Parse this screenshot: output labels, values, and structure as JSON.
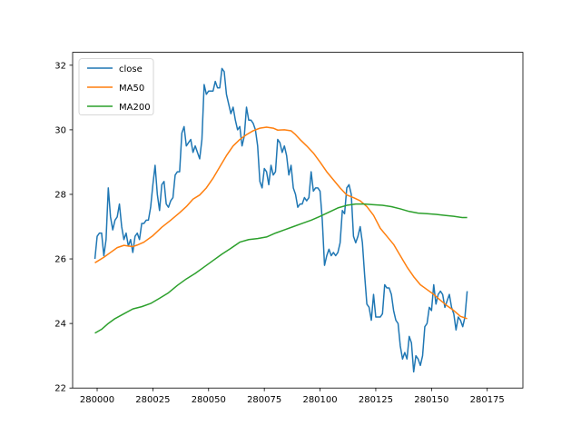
{
  "chart_data": {
    "type": "line",
    "title": "",
    "xlabel": "",
    "ylabel": "",
    "xlim": [
      279989,
      280191
    ],
    "ylim": [
      22,
      32.4
    ],
    "x_ticks": [
      280000,
      280025,
      280050,
      280075,
      280100,
      280125,
      280150,
      280175
    ],
    "x_tick_labels": [
      "280000",
      "280025",
      "280050",
      "280075",
      "280100",
      "280125",
      "280150",
      "280175"
    ],
    "y_ticks": [
      22,
      24,
      26,
      28,
      30,
      32
    ],
    "y_tick_labels": [
      "22",
      "24",
      "26",
      "28",
      "30",
      "32"
    ],
    "grid": false,
    "legend": {
      "position": "top-left",
      "entries": [
        "close",
        "MA50",
        "MA200"
      ]
    },
    "series": [
      {
        "name": "close",
        "color": "#1f77b4",
        "points": [
          [
            279999,
            26.0
          ],
          [
            280000,
            26.7
          ],
          [
            280001,
            26.8
          ],
          [
            280002,
            26.8
          ],
          [
            280003,
            26.1
          ],
          [
            280004,
            26.6
          ],
          [
            280005,
            28.2
          ],
          [
            280006,
            27.3
          ],
          [
            280007,
            26.9
          ],
          [
            280008,
            27.2
          ],
          [
            280009,
            27.3
          ],
          [
            280010,
            27.7
          ],
          [
            280011,
            27.0
          ],
          [
            280012,
            26.6
          ],
          [
            280013,
            26.8
          ],
          [
            280014,
            26.4
          ],
          [
            280015,
            26.6
          ],
          [
            280016,
            26.2
          ],
          [
            280017,
            26.7
          ],
          [
            280018,
            26.8
          ],
          [
            280019,
            26.6
          ],
          [
            280020,
            27.1
          ],
          [
            280021,
            27.1
          ],
          [
            280022,
            27.2
          ],
          [
            280023,
            27.2
          ],
          [
            280024,
            27.6
          ],
          [
            280025,
            28.3
          ],
          [
            280026,
            28.9
          ],
          [
            280027,
            28.0
          ],
          [
            280028,
            27.5
          ],
          [
            280029,
            28.3
          ],
          [
            280030,
            28.4
          ],
          [
            280031,
            27.7
          ],
          [
            280032,
            27.6
          ],
          [
            280033,
            27.8
          ],
          [
            280034,
            27.9
          ],
          [
            280035,
            28.6
          ],
          [
            280036,
            28.7
          ],
          [
            280037,
            28.7
          ],
          [
            280038,
            29.9
          ],
          [
            280039,
            30.1
          ],
          [
            280040,
            29.5
          ],
          [
            280041,
            29.6
          ],
          [
            280042,
            29.7
          ],
          [
            280043,
            29.3
          ],
          [
            280044,
            29.5
          ],
          [
            280045,
            29.3
          ],
          [
            280046,
            29.1
          ],
          [
            280047,
            29.7
          ],
          [
            280048,
            31.4
          ],
          [
            280049,
            31.1
          ],
          [
            280050,
            31.2
          ],
          [
            280051,
            31.2
          ],
          [
            280052,
            31.2
          ],
          [
            280053,
            31.5
          ],
          [
            280054,
            31.3
          ],
          [
            280055,
            31.3
          ],
          [
            280056,
            31.9
          ],
          [
            280057,
            31.8
          ],
          [
            280058,
            31.1
          ],
          [
            280059,
            30.8
          ],
          [
            280060,
            30.5
          ],
          [
            280061,
            30.7
          ],
          [
            280062,
            30.3
          ],
          [
            280063,
            30.0
          ],
          [
            280064,
            30.1
          ],
          [
            280065,
            29.5
          ],
          [
            280066,
            29.8
          ],
          [
            280067,
            30.7
          ],
          [
            280068,
            30.3
          ],
          [
            280069,
            30.3
          ],
          [
            280070,
            30.2
          ],
          [
            280071,
            30.0
          ],
          [
            280072,
            29.5
          ],
          [
            280073,
            28.4
          ],
          [
            280074,
            28.2
          ],
          [
            280075,
            28.8
          ],
          [
            280076,
            28.7
          ],
          [
            280077,
            28.3
          ],
          [
            280078,
            28.9
          ],
          [
            280079,
            28.6
          ],
          [
            280080,
            28.7
          ],
          [
            280081,
            29.7
          ],
          [
            280082,
            29.6
          ],
          [
            280083,
            29.3
          ],
          [
            280084,
            29.5
          ],
          [
            280085,
            29.2
          ],
          [
            280086,
            28.6
          ],
          [
            280087,
            28.9
          ],
          [
            280088,
            28.2
          ],
          [
            280089,
            28.0
          ],
          [
            280090,
            27.6
          ],
          [
            280091,
            27.7
          ],
          [
            280092,
            27.7
          ],
          [
            280093,
            27.9
          ],
          [
            280094,
            27.8
          ],
          [
            280095,
            27.9
          ],
          [
            280096,
            28.7
          ],
          [
            280097,
            28.1
          ],
          [
            280098,
            28.2
          ],
          [
            280099,
            28.2
          ],
          [
            280100,
            28.1
          ],
          [
            280101,
            27.2
          ],
          [
            280102,
            25.8
          ],
          [
            280103,
            26.1
          ],
          [
            280104,
            26.3
          ],
          [
            280105,
            26.1
          ],
          [
            280106,
            26.2
          ],
          [
            280107,
            26.1
          ],
          [
            280108,
            26.2
          ],
          [
            280109,
            26.5
          ],
          [
            280110,
            27.5
          ],
          [
            280111,
            27.4
          ],
          [
            280112,
            28.2
          ],
          [
            280113,
            28.3
          ],
          [
            280114,
            28.0
          ],
          [
            280115,
            26.7
          ],
          [
            280116,
            26.5
          ],
          [
            280117,
            26.7
          ],
          [
            280118,
            27.0
          ],
          [
            280119,
            26.5
          ],
          [
            280120,
            25.5
          ],
          [
            280121,
            24.6
          ],
          [
            280122,
            24.5
          ],
          [
            280123,
            24.1
          ],
          [
            280124,
            24.9
          ],
          [
            280125,
            24.2
          ],
          [
            280126,
            24.2
          ],
          [
            280127,
            24.2
          ],
          [
            280128,
            24.3
          ],
          [
            280129,
            25.2
          ],
          [
            280130,
            25.1
          ],
          [
            280131,
            25.1
          ],
          [
            280132,
            24.9
          ],
          [
            280133,
            24.4
          ],
          [
            280134,
            24.1
          ],
          [
            280135,
            24.0
          ],
          [
            280136,
            23.3
          ],
          [
            280137,
            22.9
          ],
          [
            280138,
            23.1
          ],
          [
            280139,
            22.9
          ],
          [
            280140,
            23.6
          ],
          [
            280141,
            23.4
          ],
          [
            280142,
            22.5
          ],
          [
            280143,
            23.0
          ],
          [
            280144,
            22.9
          ],
          [
            280145,
            22.7
          ],
          [
            280146,
            23.0
          ],
          [
            280147,
            23.9
          ],
          [
            280148,
            24.0
          ],
          [
            280149,
            24.5
          ],
          [
            280150,
            24.4
          ],
          [
            280151,
            25.2
          ],
          [
            280152,
            24.6
          ],
          [
            280153,
            24.9
          ],
          [
            280154,
            25.0
          ],
          [
            280155,
            24.9
          ],
          [
            280156,
            24.5
          ],
          [
            280157,
            24.7
          ],
          [
            280158,
            24.9
          ],
          [
            280159,
            24.5
          ],
          [
            280160,
            24.3
          ],
          [
            280161,
            23.8
          ],
          [
            280162,
            24.2
          ],
          [
            280163,
            24.1
          ],
          [
            280164,
            23.9
          ],
          [
            280165,
            24.2
          ],
          [
            280166,
            25.0
          ]
        ]
      },
      {
        "name": "MA50",
        "color": "#ff7f0e",
        "points": [
          [
            279999,
            25.88
          ],
          [
            280003,
            26.05
          ],
          [
            280006,
            26.2
          ],
          [
            280009,
            26.35
          ],
          [
            280012,
            26.42
          ],
          [
            280014,
            26.4
          ],
          [
            280016,
            26.38
          ],
          [
            280018,
            26.43
          ],
          [
            280021,
            26.52
          ],
          [
            280025,
            26.72
          ],
          [
            280029,
            26.98
          ],
          [
            280033,
            27.2
          ],
          [
            280037,
            27.43
          ],
          [
            280040,
            27.62
          ],
          [
            280043,
            27.85
          ],
          [
            280046,
            27.98
          ],
          [
            280049,
            28.2
          ],
          [
            280052,
            28.5
          ],
          [
            280055,
            28.85
          ],
          [
            280058,
            29.2
          ],
          [
            280061,
            29.5
          ],
          [
            280064,
            29.7
          ],
          [
            280067,
            29.85
          ],
          [
            280070,
            29.97
          ],
          [
            280073,
            30.05
          ],
          [
            280076,
            30.08
          ],
          [
            280079,
            30.05
          ],
          [
            280081,
            29.99
          ],
          [
            280084,
            30.0
          ],
          [
            280087,
            29.97
          ],
          [
            280089,
            29.85
          ],
          [
            280091,
            29.7
          ],
          [
            280094,
            29.5
          ],
          [
            280097,
            29.28
          ],
          [
            280100,
            29.0
          ],
          [
            280103,
            28.7
          ],
          [
            280106,
            28.45
          ],
          [
            280109,
            28.2
          ],
          [
            280112,
            27.98
          ],
          [
            280115,
            27.9
          ],
          [
            280118,
            27.8
          ],
          [
            280121,
            27.62
          ],
          [
            280124,
            27.35
          ],
          [
            280127,
            26.95
          ],
          [
            280130,
            26.7
          ],
          [
            280133,
            26.45
          ],
          [
            280136,
            26.1
          ],
          [
            280139,
            25.75
          ],
          [
            280142,
            25.45
          ],
          [
            280145,
            25.2
          ],
          [
            280148,
            25.05
          ],
          [
            280151,
            24.9
          ],
          [
            280154,
            24.72
          ],
          [
            280157,
            24.55
          ],
          [
            280160,
            24.4
          ],
          [
            280163,
            24.22
          ],
          [
            280166,
            24.15
          ]
        ]
      },
      {
        "name": "MA200",
        "color": "#2ca02c",
        "points": [
          [
            279999,
            23.7
          ],
          [
            280002,
            23.82
          ],
          [
            280005,
            24.0
          ],
          [
            280008,
            24.15
          ],
          [
            280012,
            24.3
          ],
          [
            280016,
            24.45
          ],
          [
            280020,
            24.52
          ],
          [
            280024,
            24.62
          ],
          [
            280028,
            24.78
          ],
          [
            280032,
            24.95
          ],
          [
            280036,
            25.18
          ],
          [
            280040,
            25.38
          ],
          [
            280044,
            25.55
          ],
          [
            280048,
            25.75
          ],
          [
            280052,
            25.95
          ],
          [
            280056,
            26.15
          ],
          [
            280060,
            26.33
          ],
          [
            280064,
            26.52
          ],
          [
            280068,
            26.6
          ],
          [
            280072,
            26.63
          ],
          [
            280076,
            26.68
          ],
          [
            280080,
            26.8
          ],
          [
            280084,
            26.9
          ],
          [
            280088,
            27.0
          ],
          [
            280092,
            27.1
          ],
          [
            280096,
            27.2
          ],
          [
            280100,
            27.32
          ],
          [
            280104,
            27.45
          ],
          [
            280108,
            27.58
          ],
          [
            280112,
            27.66
          ],
          [
            280116,
            27.7
          ],
          [
            280120,
            27.7
          ],
          [
            280124,
            27.68
          ],
          [
            280128,
            27.66
          ],
          [
            280132,
            27.62
          ],
          [
            280136,
            27.55
          ],
          [
            280140,
            27.47
          ],
          [
            280144,
            27.42
          ],
          [
            280148,
            27.4
          ],
          [
            280152,
            27.38
          ],
          [
            280156,
            27.35
          ],
          [
            280160,
            27.32
          ],
          [
            280164,
            27.28
          ],
          [
            280166,
            27.28
          ]
        ]
      }
    ]
  }
}
